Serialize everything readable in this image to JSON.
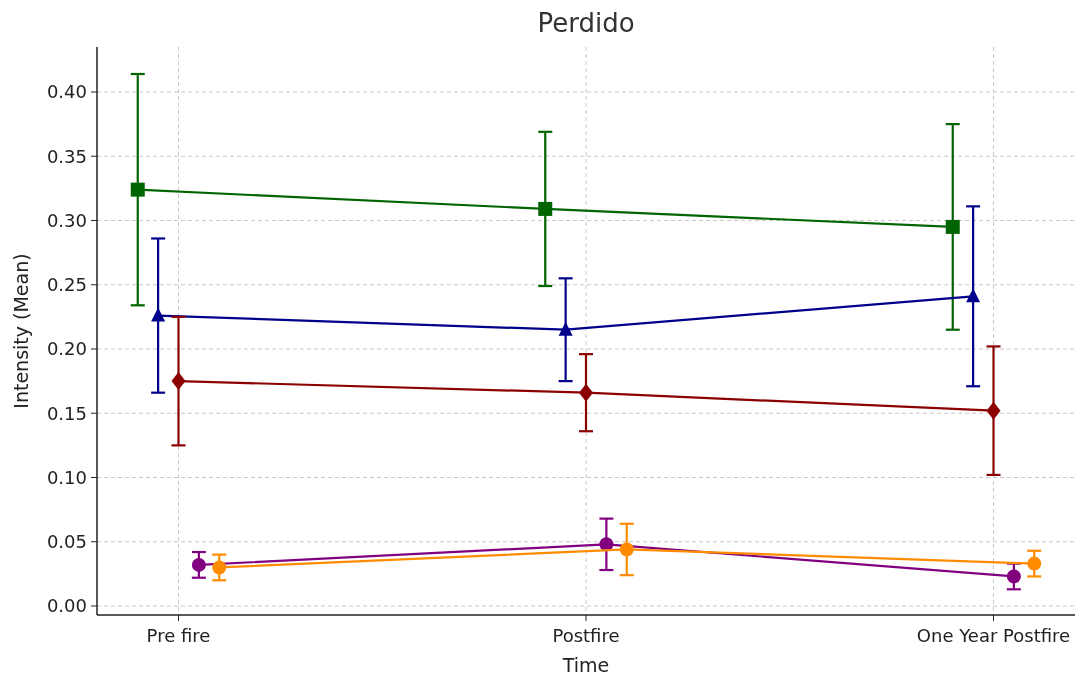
{
  "chart_data": {
    "type": "line",
    "title": "Perdido",
    "xlabel": "Time",
    "ylabel": "Intensity (Mean)",
    "categories": [
      "Pre fire",
      "Postfire",
      "One Year Postfire"
    ],
    "ylim": [
      -0.007,
      0.435
    ],
    "yticks": [
      {
        "value": 0,
        "label": "0.00"
      },
      {
        "value": 0.05,
        "label": "0.05"
      },
      {
        "value": 0.1,
        "label": "0.10"
      },
      {
        "value": 0.15,
        "label": "0.15"
      },
      {
        "value": 0.2,
        "label": "0.20"
      },
      {
        "value": 0.25,
        "label": "0.25"
      },
      {
        "value": 0.3,
        "label": "0.30"
      },
      {
        "value": 0.35,
        "label": "0.35"
      },
      {
        "value": 0.4,
        "label": "0.40"
      }
    ],
    "grid": true,
    "line_style": "solid",
    "series": [
      {
        "color": "#006400",
        "marker": "square",
        "values": [
          0.324,
          0.309,
          0.295
        ],
        "errors": [
          0.09,
          0.06,
          0.08
        ]
      },
      {
        "color": "#00008b",
        "marker": "triangle",
        "values": [
          0.226,
          0.215,
          0.241
        ],
        "errors": [
          0.06,
          0.04,
          0.07
        ]
      },
      {
        "color": "#8b0000",
        "marker": "diamond",
        "values": [
          0.175,
          0.166,
          0.152
        ],
        "errors": [
          0.05,
          0.03,
          0.05
        ]
      },
      {
        "color": "#800080",
        "marker": "circle",
        "values": [
          0.032,
          0.048,
          0.023
        ],
        "errors": [
          0.01,
          0.02,
          0.01
        ]
      },
      {
        "color": "#ff8c00",
        "marker": "circle",
        "values": [
          0.03,
          0.044,
          0.033
        ],
        "errors": [
          0.01,
          0.02,
          0.01
        ]
      }
    ]
  }
}
